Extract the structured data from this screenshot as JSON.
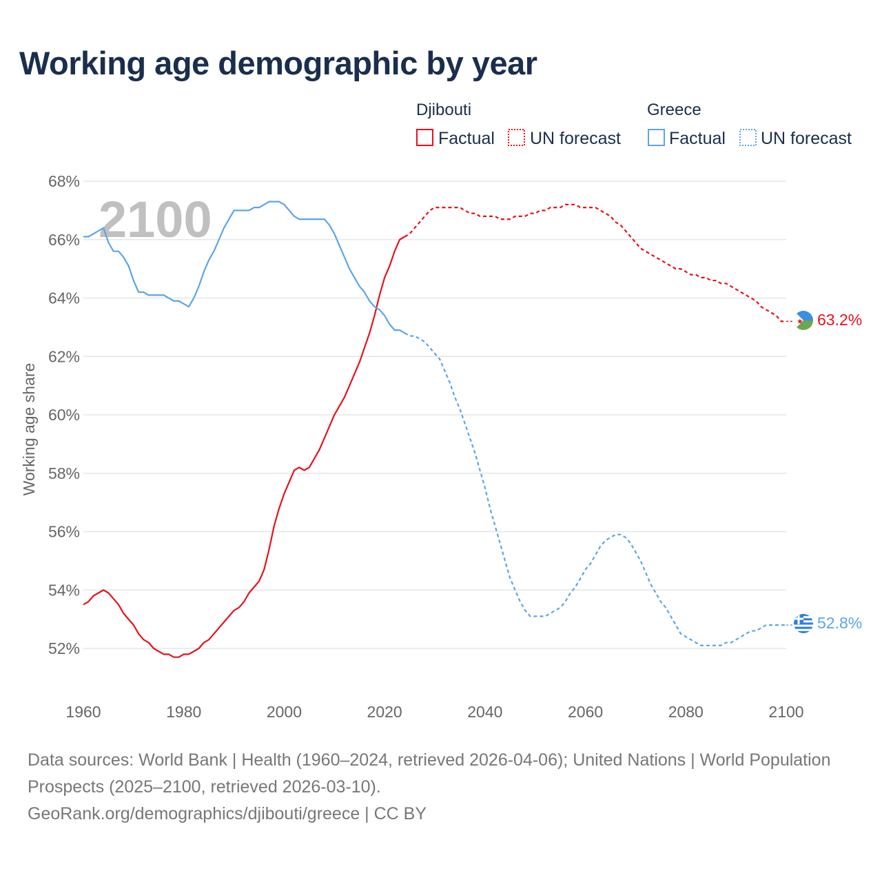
{
  "title": "Working age demographic by year",
  "legend": {
    "groups": [
      {
        "name": "Djibouti",
        "color": "#e8101a",
        "items": [
          {
            "label": "Factual",
            "style": "solid"
          },
          {
            "label": "UN forecast",
            "style": "dotted"
          }
        ]
      },
      {
        "name": "Greece",
        "color": "#5aa5e8",
        "items": [
          {
            "label": "Factual",
            "style": "solid"
          },
          {
            "label": "UN forecast",
            "style": "dotted"
          }
        ]
      }
    ]
  },
  "year_display": "2100",
  "footer": {
    "sources": "Data sources: World Bank | Health (1960–2024, retrieved 2026-04-06); United Nations | World Population Prospects (2025–2100, retrieved 2026-03-10).",
    "attribution": "GeoRank.org/demographics/djibouti/greece | CC BY"
  },
  "chart_data": {
    "type": "line",
    "title": "Working age demographic by year",
    "xlabel": "",
    "ylabel": "Working age share",
    "xlim": [
      1960,
      2100
    ],
    "ylim": [
      51.5,
      68
    ],
    "x_ticks": [
      1960,
      1980,
      2000,
      2020,
      2040,
      2060,
      2080,
      2100
    ],
    "y_ticks": [
      52,
      54,
      56,
      58,
      60,
      62,
      64,
      66,
      68
    ],
    "y_tick_labels": [
      "52%",
      "54%",
      "56%",
      "58%",
      "60%",
      "62%",
      "64%",
      "66%",
      "68%"
    ],
    "grid": true,
    "series": [
      {
        "name": "Djibouti",
        "color": "#e8101a",
        "end_label": "63.2%",
        "factual": {
          "x": [
            1960,
            1961,
            1962,
            1963,
            1964,
            1965,
            1966,
            1967,
            1968,
            1969,
            1970,
            1971,
            1972,
            1973,
            1974,
            1975,
            1976,
            1977,
            1978,
            1979,
            1980,
            1981,
            1982,
            1983,
            1984,
            1985,
            1986,
            1987,
            1988,
            1989,
            1990,
            1991,
            1992,
            1993,
            1994,
            1995,
            1996,
            1997,
            1998,
            1999,
            2000,
            2001,
            2002,
            2003,
            2004,
            2005,
            2006,
            2007,
            2008,
            2009,
            2010,
            2011,
            2012,
            2013,
            2014,
            2015,
            2016,
            2017,
            2018,
            2019,
            2020,
            2021,
            2022,
            2023,
            2024
          ],
          "y": [
            53.5,
            53.6,
            53.8,
            53.9,
            54.0,
            53.9,
            53.7,
            53.5,
            53.2,
            53.0,
            52.8,
            52.5,
            52.3,
            52.2,
            52.0,
            51.9,
            51.8,
            51.8,
            51.7,
            51.7,
            51.8,
            51.8,
            51.9,
            52.0,
            52.2,
            52.3,
            52.5,
            52.7,
            52.9,
            53.1,
            53.3,
            53.4,
            53.6,
            53.9,
            54.1,
            54.3,
            54.7,
            55.4,
            56.2,
            56.8,
            57.3,
            57.7,
            58.1,
            58.2,
            58.1,
            58.2,
            58.5,
            58.8,
            59.2,
            59.6,
            60.0,
            60.3,
            60.6,
            61.0,
            61.4,
            61.8,
            62.3,
            62.8,
            63.4,
            64.1,
            64.7,
            65.1,
            65.6,
            66.0,
            66.1
          ]
        },
        "forecast": {
          "x": [
            2024,
            2025,
            2026,
            2027,
            2028,
            2029,
            2030,
            2031,
            2032,
            2033,
            2034,
            2035,
            2036,
            2037,
            2038,
            2039,
            2040,
            2041,
            2042,
            2043,
            2044,
            2045,
            2046,
            2047,
            2048,
            2049,
            2050,
            2051,
            2052,
            2053,
            2054,
            2055,
            2056,
            2057,
            2058,
            2059,
            2060,
            2061,
            2062,
            2063,
            2064,
            2065,
            2066,
            2067,
            2068,
            2069,
            2070,
            2071,
            2072,
            2073,
            2074,
            2075,
            2076,
            2077,
            2078,
            2079,
            2080,
            2081,
            2082,
            2083,
            2084,
            2085,
            2086,
            2087,
            2088,
            2089,
            2090,
            2091,
            2092,
            2093,
            2094,
            2095,
            2096,
            2097,
            2098,
            2099,
            2100
          ],
          "y": [
            66.1,
            66.2,
            66.4,
            66.6,
            66.8,
            67.0,
            67.1,
            67.1,
            67.1,
            67.1,
            67.1,
            67.1,
            67.0,
            66.9,
            66.9,
            66.8,
            66.8,
            66.8,
            66.8,
            66.7,
            66.7,
            66.7,
            66.8,
            66.8,
            66.8,
            66.9,
            66.9,
            67.0,
            67.0,
            67.1,
            67.1,
            67.1,
            67.2,
            67.2,
            67.2,
            67.1,
            67.1,
            67.1,
            67.1,
            67.0,
            66.9,
            66.8,
            66.6,
            66.5,
            66.3,
            66.1,
            65.9,
            65.7,
            65.6,
            65.5,
            65.4,
            65.3,
            65.2,
            65.1,
            65.0,
            65.0,
            64.9,
            64.8,
            64.8,
            64.7,
            64.7,
            64.6,
            64.6,
            64.5,
            64.5,
            64.4,
            64.3,
            64.2,
            64.1,
            64.0,
            63.9,
            63.7,
            63.6,
            63.5,
            63.4,
            63.2,
            63.2
          ]
        }
      },
      {
        "name": "Greece",
        "color": "#5aa5e8",
        "end_label": "52.8%",
        "factual": {
          "x": [
            1960,
            1961,
            1962,
            1963,
            1964,
            1965,
            1966,
            1967,
            1968,
            1969,
            1970,
            1971,
            1972,
            1973,
            1974,
            1975,
            1976,
            1977,
            1978,
            1979,
            1980,
            1981,
            1982,
            1983,
            1984,
            1985,
            1986,
            1987,
            1988,
            1989,
            1990,
            1991,
            1992,
            1993,
            1994,
            1995,
            1996,
            1997,
            1998,
            1999,
            2000,
            2001,
            2002,
            2003,
            2004,
            2005,
            2006,
            2007,
            2008,
            2009,
            2010,
            2011,
            2012,
            2013,
            2014,
            2015,
            2016,
            2017,
            2018,
            2019,
            2020,
            2021,
            2022,
            2023,
            2024
          ],
          "y": [
            66.1,
            66.1,
            66.2,
            66.3,
            66.4,
            65.9,
            65.6,
            65.6,
            65.4,
            65.1,
            64.6,
            64.2,
            64.2,
            64.1,
            64.1,
            64.1,
            64.1,
            64.0,
            63.9,
            63.9,
            63.8,
            63.7,
            64.0,
            64.4,
            64.9,
            65.3,
            65.6,
            66.0,
            66.4,
            66.7,
            67.0,
            67.0,
            67.0,
            67.0,
            67.1,
            67.1,
            67.2,
            67.3,
            67.3,
            67.3,
            67.2,
            67.0,
            66.8,
            66.7,
            66.7,
            66.7,
            66.7,
            66.7,
            66.7,
            66.5,
            66.2,
            65.8,
            65.4,
            65.0,
            64.7,
            64.4,
            64.2,
            63.9,
            63.7,
            63.6,
            63.4,
            63.1,
            62.9,
            62.9,
            62.8
          ]
        },
        "forecast": {
          "x": [
            2024,
            2025,
            2026,
            2027,
            2028,
            2029,
            2030,
            2031,
            2032,
            2033,
            2034,
            2035,
            2036,
            2037,
            2038,
            2039,
            2040,
            2041,
            2042,
            2043,
            2044,
            2045,
            2046,
            2047,
            2048,
            2049,
            2050,
            2051,
            2052,
            2053,
            2054,
            2055,
            2056,
            2057,
            2058,
            2059,
            2060,
            2061,
            2062,
            2063,
            2064,
            2065,
            2066,
            2067,
            2068,
            2069,
            2070,
            2071,
            2072,
            2073,
            2074,
            2075,
            2076,
            2077,
            2078,
            2079,
            2080,
            2081,
            2082,
            2083,
            2084,
            2085,
            2086,
            2087,
            2088,
            2089,
            2090,
            2091,
            2092,
            2093,
            2094,
            2095,
            2096,
            2097,
            2098,
            2099,
            2100
          ],
          "y": [
            62.8,
            62.7,
            62.7,
            62.6,
            62.5,
            62.3,
            62.1,
            61.9,
            61.5,
            61.1,
            60.6,
            60.2,
            59.7,
            59.2,
            58.7,
            58.1,
            57.5,
            56.8,
            56.2,
            55.6,
            55.0,
            54.4,
            54.0,
            53.6,
            53.3,
            53.1,
            53.1,
            53.1,
            53.1,
            53.2,
            53.3,
            53.4,
            53.6,
            53.9,
            54.1,
            54.4,
            54.7,
            54.9,
            55.2,
            55.5,
            55.7,
            55.8,
            55.9,
            55.9,
            55.8,
            55.6,
            55.3,
            55.0,
            54.6,
            54.2,
            53.9,
            53.6,
            53.4,
            53.1,
            52.8,
            52.5,
            52.4,
            52.3,
            52.2,
            52.1,
            52.1,
            52.1,
            52.1,
            52.1,
            52.2,
            52.2,
            52.3,
            52.4,
            52.5,
            52.6,
            52.6,
            52.7,
            52.8,
            52.8,
            52.8,
            52.8,
            52.8
          ]
        }
      }
    ]
  }
}
